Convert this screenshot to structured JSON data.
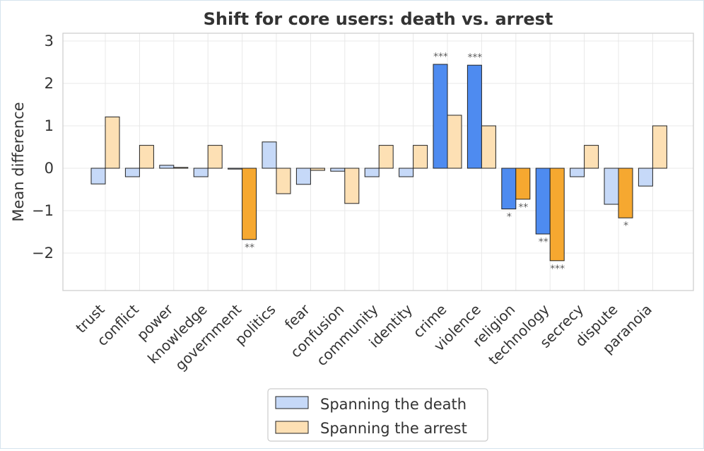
{
  "chart_data": {
    "type": "bar",
    "title": "Shift for core users: death vs. arrest",
    "xlabel": "",
    "ylabel": "Mean difference",
    "ylim": [
      -2.9,
      3.2
    ],
    "yticks": [
      3,
      2,
      1,
      0,
      -1,
      -2
    ],
    "ytick_labels": [
      "3",
      "2",
      "1",
      "0",
      "−1",
      "−2"
    ],
    "grid": true,
    "legend_position": "bottom-center",
    "categories": [
      "trust",
      "conflict",
      "power",
      "knowledge",
      "government",
      "politics",
      "fear",
      "confusion",
      "community",
      "identity",
      "crime",
      "violence",
      "religion",
      "technology",
      "secrecy",
      "dispute",
      "paranoia"
    ],
    "series": [
      {
        "name": "Spanning the death",
        "values": [
          -0.37,
          -0.2,
          0.07,
          -0.2,
          0.0,
          0.62,
          -0.38,
          -0.07,
          -0.2,
          -0.2,
          2.45,
          2.43,
          -0.96,
          -1.55,
          -0.2,
          -0.85,
          -0.42
        ],
        "significance": [
          "",
          "",
          "",
          "",
          "",
          "",
          "",
          "",
          "",
          "",
          "***",
          "***",
          "*",
          "**",
          "",
          "",
          ""
        ]
      },
      {
        "name": "Spanning the arrest",
        "values": [
          1.21,
          0.54,
          0.02,
          0.54,
          -1.68,
          -0.6,
          -0.05,
          -0.83,
          0.54,
          0.54,
          1.25,
          1.0,
          -0.73,
          -2.18,
          0.54,
          -1.17,
          1.0
        ],
        "significance": [
          "",
          "",
          "",
          "",
          "**",
          "",
          "",
          "",
          "",
          "",
          "",
          "",
          "**",
          "***",
          "",
          "*",
          ""
        ]
      }
    ],
    "colors": {
      "death_light": "#c6d9f8",
      "death_sig": "#4e8bf0",
      "arrest_light": "#fde0b4",
      "arrest_sig": "#f6a830",
      "edge": "#222222",
      "grid": "#e8e8e8",
      "axis": "#cccccc"
    }
  }
}
